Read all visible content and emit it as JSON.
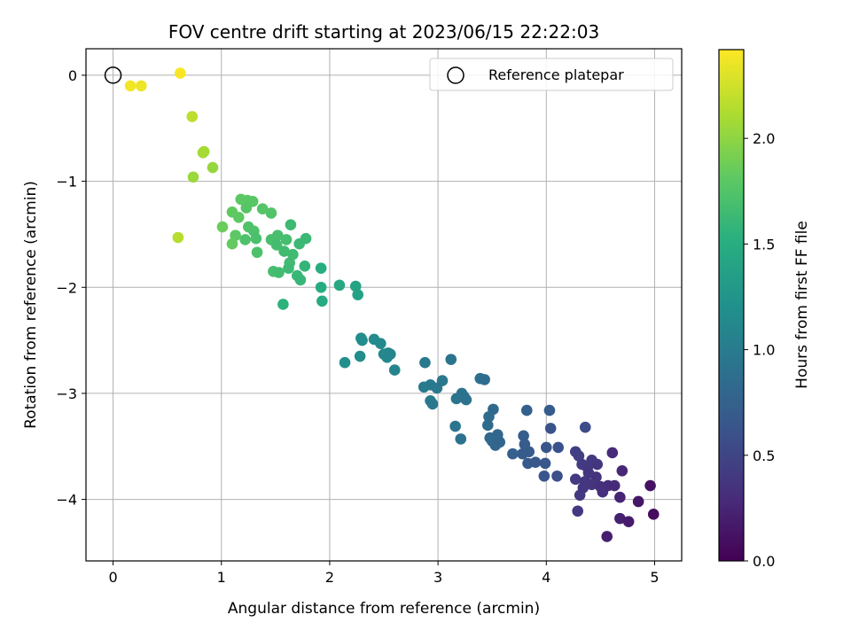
{
  "chart_data": {
    "type": "scatter",
    "title": "FOV centre drift starting at 2023/06/15 22:22:03",
    "xlabel": "Angular distance from reference (arcmin)",
    "ylabel": "Rotation from reference (arcmin)",
    "xlim": [
      -0.25,
      5.25
    ],
    "ylim": [
      -4.58,
      0.25
    ],
    "xticks": [
      0,
      1,
      2,
      3,
      4,
      5
    ],
    "yticks": [
      0,
      -1,
      -2,
      -3,
      -4
    ],
    "xtick_labels": [
      "0",
      "1",
      "2",
      "3",
      "4",
      "5"
    ],
    "ytick_labels": [
      "0",
      "−1",
      "−2",
      "−3",
      "−4"
    ],
    "grid": true,
    "legend": {
      "position": "top-right",
      "entries": [
        "Reference platepar"
      ]
    },
    "reference_point": {
      "x": 0,
      "y": 0
    },
    "colorbar": {
      "label": "Hours from first FF file",
      "range": [
        0,
        2.42
      ],
      "ticks": [
        0,
        0.5,
        1,
        1.5,
        2
      ],
      "tick_labels": [
        "0.0",
        "0.5",
        "1.0",
        "1.5",
        "2.0"
      ],
      "colormap": "viridis"
    },
    "points": [
      [
        0.62,
        0.02,
        2.4
      ],
      [
        0.16,
        -0.1,
        2.38
      ],
      [
        0.26,
        -0.1,
        2.36
      ],
      [
        0.73,
        -0.39,
        2.18
      ],
      [
        0.84,
        -0.72,
        2.1
      ],
      [
        0.83,
        -0.73,
        2.09
      ],
      [
        0.92,
        -0.87,
        2.03
      ],
      [
        0.74,
        -0.96,
        2.05
      ],
      [
        0.6,
        -1.53,
        2.15
      ],
      [
        1.18,
        -1.17,
        1.8
      ],
      [
        1.24,
        -1.18,
        1.79
      ],
      [
        1.29,
        -1.19,
        1.78
      ],
      [
        1.23,
        -1.25,
        1.77
      ],
      [
        1.38,
        -1.26,
        1.76
      ],
      [
        1.46,
        -1.3,
        1.75
      ],
      [
        1.1,
        -1.29,
        1.82
      ],
      [
        1.16,
        -1.34,
        1.81
      ],
      [
        1.01,
        -1.43,
        1.86
      ],
      [
        1.25,
        -1.43,
        1.74
      ],
      [
        1.3,
        -1.47,
        1.73
      ],
      [
        1.13,
        -1.51,
        1.8
      ],
      [
        1.22,
        -1.55,
        1.72
      ],
      [
        1.1,
        -1.59,
        1.83
      ],
      [
        1.32,
        -1.54,
        1.71
      ],
      [
        1.46,
        -1.55,
        1.7
      ],
      [
        1.52,
        -1.51,
        1.69
      ],
      [
        1.6,
        -1.55,
        1.68
      ],
      [
        1.64,
        -1.41,
        1.64
      ],
      [
        1.51,
        -1.6,
        1.67
      ],
      [
        1.58,
        -1.66,
        1.66
      ],
      [
        1.66,
        -1.69,
        1.65
      ],
      [
        1.72,
        -1.59,
        1.63
      ],
      [
        1.78,
        -1.54,
        1.62
      ],
      [
        1.33,
        -1.67,
        1.72
      ],
      [
        1.63,
        -1.77,
        1.65
      ],
      [
        1.62,
        -1.82,
        1.64
      ],
      [
        1.48,
        -1.85,
        1.68
      ],
      [
        1.53,
        -1.86,
        1.67
      ],
      [
        1.7,
        -1.89,
        1.61
      ],
      [
        1.73,
        -1.93,
        1.6
      ],
      [
        1.77,
        -1.8,
        1.58
      ],
      [
        1.57,
        -2.16,
        1.55
      ],
      [
        1.92,
        -1.82,
        1.5
      ],
      [
        1.92,
        -2.0,
        1.48
      ],
      [
        2.09,
        -1.98,
        1.45
      ],
      [
        2.24,
        -1.99,
        1.4
      ],
      [
        1.93,
        -2.13,
        1.46
      ],
      [
        2.26,
        -2.07,
        1.39
      ],
      [
        2.29,
        -2.48,
        1.18
      ],
      [
        2.3,
        -2.5,
        1.17
      ],
      [
        2.41,
        -2.49,
        1.15
      ],
      [
        2.47,
        -2.53,
        1.13
      ],
      [
        2.54,
        -2.62,
        1.11
      ],
      [
        2.5,
        -2.63,
        1.12
      ],
      [
        2.56,
        -2.63,
        1.1
      ],
      [
        2.28,
        -2.65,
        1.16
      ],
      [
        2.53,
        -2.66,
        1.11
      ],
      [
        2.6,
        -2.78,
        1.08
      ],
      [
        2.14,
        -2.71,
        1.2
      ],
      [
        2.88,
        -2.71,
        0.98
      ],
      [
        3.12,
        -2.68,
        0.93
      ],
      [
        3.39,
        -2.86,
        0.87
      ],
      [
        3.43,
        -2.87,
        0.86
      ],
      [
        2.87,
        -2.94,
        0.99
      ],
      [
        2.93,
        -2.92,
        0.98
      ],
      [
        3.04,
        -2.88,
        0.96
      ],
      [
        2.99,
        -2.95,
        0.97
      ],
      [
        3.22,
        -3.0,
        0.92
      ],
      [
        3.24,
        -3.03,
        0.91
      ],
      [
        3.17,
        -3.05,
        0.93
      ],
      [
        3.26,
        -3.06,
        0.9
      ],
      [
        2.93,
        -3.07,
        0.98
      ],
      [
        2.95,
        -3.1,
        0.97
      ],
      [
        3.51,
        -3.15,
        0.82
      ],
      [
        3.47,
        -3.22,
        0.83
      ],
      [
        3.46,
        -3.3,
        0.84
      ],
      [
        3.82,
        -3.16,
        0.74
      ],
      [
        4.03,
        -3.16,
        0.7
      ],
      [
        3.16,
        -3.31,
        0.93
      ],
      [
        3.21,
        -3.43,
        0.91
      ],
      [
        3.48,
        -3.42,
        0.82
      ],
      [
        3.5,
        -3.45,
        0.81
      ],
      [
        3.55,
        -3.39,
        0.8
      ],
      [
        3.53,
        -3.49,
        0.79
      ],
      [
        3.57,
        -3.46,
        0.78
      ],
      [
        3.79,
        -3.4,
        0.72
      ],
      [
        3.8,
        -3.48,
        0.71
      ],
      [
        3.84,
        -3.55,
        0.69
      ],
      [
        3.78,
        -3.57,
        0.7
      ],
      [
        4.04,
        -3.33,
        0.62
      ],
      [
        4.36,
        -3.32,
        0.55
      ],
      [
        4.0,
        -3.51,
        0.64
      ],
      [
        4.11,
        -3.51,
        0.6
      ],
      [
        3.69,
        -3.57,
        0.73
      ],
      [
        3.83,
        -3.66,
        0.68
      ],
      [
        3.9,
        -3.65,
        0.66
      ],
      [
        3.99,
        -3.66,
        0.64
      ],
      [
        3.98,
        -3.78,
        0.63
      ],
      [
        4.1,
        -3.78,
        0.59
      ],
      [
        4.27,
        -3.55,
        0.45
      ],
      [
        4.3,
        -3.59,
        0.44
      ],
      [
        4.33,
        -3.67,
        0.42
      ],
      [
        4.38,
        -3.7,
        0.4
      ],
      [
        4.42,
        -3.63,
        0.39
      ],
      [
        4.47,
        -3.67,
        0.37
      ],
      [
        4.39,
        -3.75,
        0.38
      ],
      [
        4.46,
        -3.79,
        0.35
      ],
      [
        4.27,
        -3.81,
        0.41
      ],
      [
        4.36,
        -3.83,
        0.39
      ],
      [
        4.42,
        -3.86,
        0.36
      ],
      [
        4.34,
        -3.89,
        0.38
      ],
      [
        4.5,
        -3.88,
        0.33
      ],
      [
        4.57,
        -3.87,
        0.3
      ],
      [
        4.63,
        -3.87,
        0.28
      ],
      [
        4.7,
        -3.73,
        0.26
      ],
      [
        4.61,
        -3.56,
        0.29
      ],
      [
        4.31,
        -3.96,
        0.4
      ],
      [
        4.52,
        -3.93,
        0.32
      ],
      [
        4.68,
        -3.98,
        0.25
      ],
      [
        4.96,
        -3.87,
        0.12
      ],
      [
        4.85,
        -4.02,
        0.15
      ],
      [
        4.29,
        -4.11,
        0.41
      ],
      [
        4.68,
        -4.18,
        0.22
      ],
      [
        4.76,
        -4.21,
        0.18
      ],
      [
        4.99,
        -4.14,
        0.08
      ],
      [
        4.56,
        -4.35,
        0.2
      ]
    ]
  }
}
